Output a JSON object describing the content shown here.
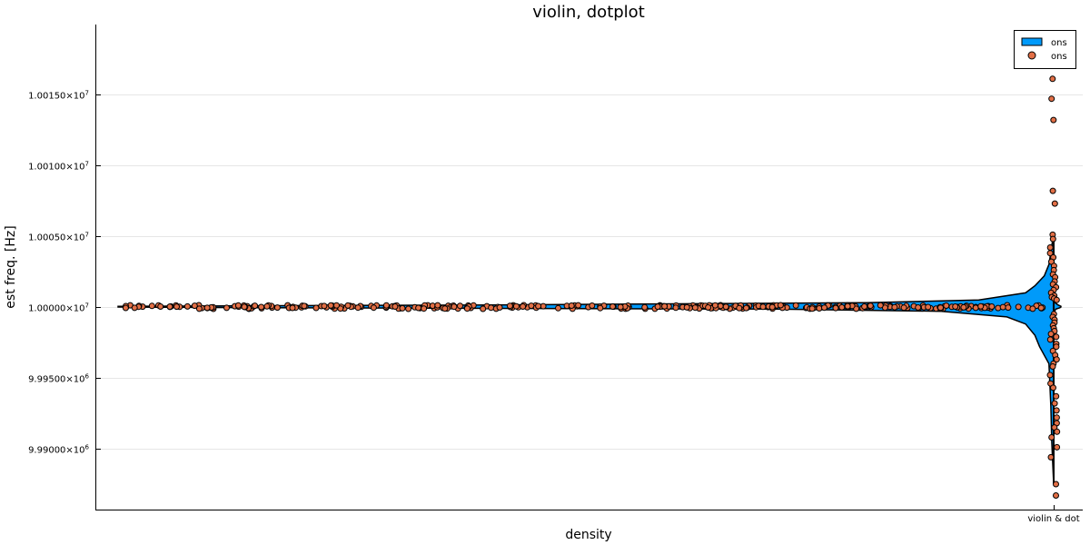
{
  "chart_data": {
    "type": "violin",
    "title": "violin, dotplot",
    "xlabel": "density",
    "ylabel": "est freq. [Hz]",
    "x_tick_label": "violin & dot",
    "ylim": [
      9987000,
      10019500
    ],
    "y_ticks": [
      {
        "value": 9990000,
        "mantissa": "9.99000",
        "exponent": "6"
      },
      {
        "value": 9995000,
        "mantissa": "9.99500",
        "exponent": "6"
      },
      {
        "value": 10000000,
        "mantissa": "1.00000",
        "exponent": "7"
      },
      {
        "value": 10005000,
        "mantissa": "1.00050",
        "exponent": "7"
      },
      {
        "value": 10010000,
        "mantissa": "1.00100",
        "exponent": "7"
      },
      {
        "value": 10015000,
        "mantissa": "1.00150",
        "exponent": "7"
      }
    ],
    "grid": true,
    "legend_position": "top-right",
    "series": [
      {
        "name": "ons",
        "kind": "violin",
        "color": "#009AFA"
      },
      {
        "name": "ons",
        "kind": "dots",
        "color": "#E26F46"
      }
    ],
    "density_scale": [
      {
        "y": 10005200,
        "density": 0.0
      },
      {
        "y": 10003000,
        "density": 0.005
      },
      {
        "y": 10002200,
        "density": 0.01
      },
      {
        "y": 10001500,
        "density": 0.02
      },
      {
        "y": 10001000,
        "density": 0.03
      },
      {
        "y": 10000500,
        "density": 0.08
      },
      {
        "y": 10000300,
        "density": 0.2
      },
      {
        "y": 10000150,
        "density": 0.6
      },
      {
        "y": 10000050,
        "density": 1.0
      },
      {
        "y": 10000000,
        "density": 1.0
      },
      {
        "y": 9999950,
        "density": 0.85
      },
      {
        "y": 9999850,
        "density": 0.3
      },
      {
        "y": 9999700,
        "density": 0.12
      },
      {
        "y": 9999300,
        "density": 0.05
      },
      {
        "y": 9998800,
        "density": 0.03
      },
      {
        "y": 9998000,
        "density": 0.02
      },
      {
        "y": 9997200,
        "density": 0.015
      },
      {
        "y": 9996000,
        "density": 0.005
      },
      {
        "y": 9993000,
        "density": 0.003
      },
      {
        "y": 9990500,
        "density": 0.002
      },
      {
        "y": 9987500,
        "density": 0.0
      }
    ],
    "outlier_points": [
      10016100,
      10014700,
      10013200,
      10008200,
      10007300,
      10005100,
      10004800,
      10004200,
      10003800,
      10003500,
      10003200,
      10002900,
      10002600,
      10002300,
      10002100,
      10001800,
      10001600,
      10001400,
      10001200,
      10001000,
      10000800,
      10000700,
      10000600,
      10000500,
      9999500,
      9999300,
      9999100,
      9998900,
      9998700,
      9998500,
      9998300,
      9998100,
      9997900,
      9997700,
      9997400,
      9997200,
      9996900,
      9996600,
      9996300,
      9996000,
      9995800,
      9995200,
      9994600,
      9994300,
      9993700,
      9993200,
      9992700,
      9992200,
      9991800,
      9991500,
      9991200,
      9990800,
      9990100,
      9989400,
      9987500,
      9986700
    ],
    "core_point_count": 330
  }
}
